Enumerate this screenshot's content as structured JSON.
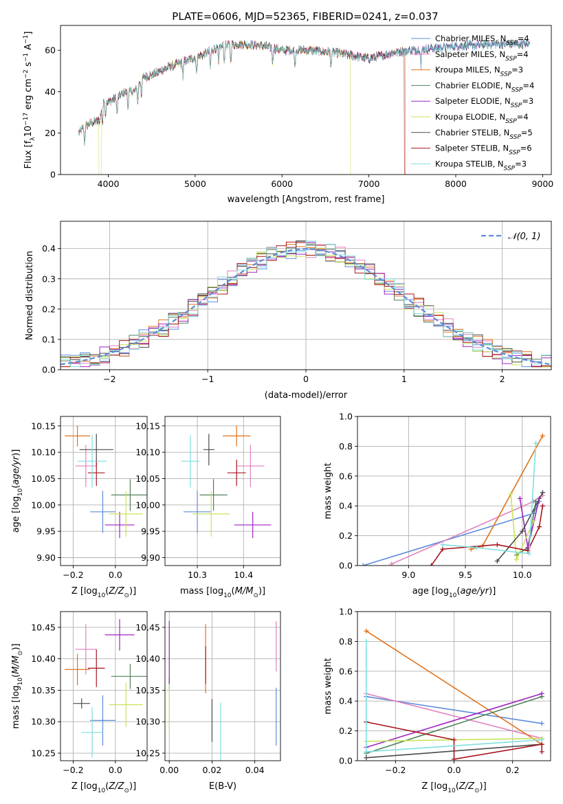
{
  "figure_title": "PLATE=0606, MJD=52365, FIBERID=0241, z=0.037",
  "colors": {
    "blue": "#5b8bd9",
    "pink": "#e27fc0",
    "orange": "#e0731c",
    "dkgreen": "#4f7f5a",
    "purple": "#9f23c0",
    "yellowgreen": "#c8e35a",
    "dkgray": "#4a4a4a",
    "red": "#a8141c",
    "cyan": "#7fdede"
  },
  "chart_data": [
    {
      "id": "spectrum",
      "type": "line",
      "title": "PLATE=0606, MJD=52365, FIBERID=0241, z=0.037",
      "xlabel": "wavelength [Angstrom, rest frame]",
      "ylabel_main": "Flux [f",
      "ylabel_sub1": "λ",
      "ylabel_mid": "10",
      "ylabel_sup1": "−17",
      "ylabel_mid2": " erg cm",
      "ylabel_sup2": "−2",
      "ylabel_mid3": " s",
      "ylabel_sup3": "−1",
      "ylabel_end": " A",
      "ylabel_sup4": "−1",
      "ylabel_close": "]",
      "xlim": [
        3450,
        9100
      ],
      "ylim": [
        0,
        72
      ],
      "xticks": [
        4000,
        5000,
        6000,
        7000,
        8000,
        9000
      ],
      "yticks": [
        0,
        20,
        40,
        60
      ],
      "grid": false,
      "legend_location": "top-right",
      "continuum": {
        "x": [
          3660,
          3700,
          3800,
          3900,
          3950,
          4000,
          4100,
          4200,
          4300,
          4400,
          4500,
          4700,
          4900,
          5100,
          5300,
          5500,
          5800,
          6000,
          6300,
          6600,
          7000,
          7300,
          7500,
          8000,
          8500,
          8850
        ],
        "y": [
          20,
          22,
          25,
          26,
          36,
          35,
          37,
          40,
          40,
          47,
          48,
          52,
          55,
          58,
          62,
          63,
          62,
          60,
          60,
          59,
          56,
          59,
          60,
          62,
          63,
          63
        ]
      },
      "series": [
        {
          "name": "Chabrier MILES",
          "sub": "SSP",
          "nssp": "4",
          "color": "blue"
        },
        {
          "name": "Salpeter MILES",
          "sub": "SSP",
          "nssp": "4",
          "color": "pink"
        },
        {
          "name": "Kroupa MILES",
          "sub": "SSP",
          "nssp": "3",
          "color": "orange",
          "drop_at": 7420
        },
        {
          "name": "Chabrier ELODIE",
          "sub": "SSP",
          "nssp": "4",
          "color": "dkgreen"
        },
        {
          "name": "Salpeter ELODIE",
          "sub": "SSP",
          "nssp": "3",
          "color": "purple"
        },
        {
          "name": "Kroupa ELODIE",
          "sub": "SSP",
          "nssp": "4",
          "color": "yellowgreen",
          "drop_at": 6790,
          "start_drop": 3910
        },
        {
          "name": "Chabrier STELIB",
          "sub": "SSP",
          "nssp": "5",
          "color": "dkgray"
        },
        {
          "name": "Salpeter STELIB",
          "sub": "SSP",
          "nssp": "6",
          "color": "red",
          "drop_at": 7410
        },
        {
          "name": "Kroupa STELIB",
          "sub": "SSP",
          "nssp": "3",
          "color": "cyan"
        }
      ]
    },
    {
      "id": "residuals",
      "type": "histogram",
      "xlabel": "(data-model)/error",
      "ylabel": "Normed distribution",
      "xlim": [
        -2.5,
        2.5
      ],
      "ylim": [
        0,
        0.49
      ],
      "xticks": [
        -2,
        -1,
        0,
        1,
        2
      ],
      "xtick_labels": [
        "−2",
        "−1",
        "0",
        "1",
        "2"
      ],
      "yticks": [
        0.0,
        0.1,
        0.2,
        0.3,
        0.4
      ],
      "ytick_labels": [
        "0.0",
        "0.1",
        "0.2",
        "0.3",
        "0.4"
      ],
      "grid": true,
      "legend_location": "top-right",
      "reference_label": "𝒩(0, 1)",
      "reference_color": "blue",
      "bin_width": 0.1,
      "series_colors": [
        "blue",
        "pink",
        "orange",
        "dkgreen",
        "purple",
        "yellowgreen",
        "dkgray",
        "red",
        "cyan"
      ]
    },
    {
      "id": "age_vs_Z",
      "type": "scatter",
      "xlabel": "Z [log",
      "xlabel_sub": "10",
      "xlabel_end": "(Z/Z",
      "xlabel_sub2": "⊙",
      "xlabel_close": ")]",
      "ylabel": "age  [log",
      "ylabel_sub": "10",
      "ylabel_end": "(age/yr)]",
      "xlim": [
        -0.26,
        0.15
      ],
      "ylim": [
        9.885,
        10.168
      ],
      "xticks": [
        -0.2,
        0.0
      ],
      "xtick_labels": [
        "−0.2",
        "0.0"
      ],
      "yticks": [
        9.9,
        9.95,
        10.0,
        10.05,
        10.1,
        10.15
      ],
      "ytick_labels": [
        "9.90",
        "9.95",
        "10.00",
        "10.05",
        "10.10",
        "10.15"
      ],
      "grid": true,
      "points": [
        {
          "color": "blue",
          "x": -0.06,
          "xerr": 0.06,
          "y": 9.987,
          "yerr": 0.04
        },
        {
          "color": "pink",
          "x": -0.14,
          "xerr": 0.05,
          "y": 10.074,
          "yerr": 0.04
        },
        {
          "color": "orange",
          "x": -0.18,
          "xerr": 0.06,
          "y": 10.131,
          "yerr": 0.02
        },
        {
          "color": "dkgreen",
          "x": 0.07,
          "xerr": 0.09,
          "y": 10.019,
          "yerr": 0.03
        },
        {
          "color": "purple",
          "x": 0.02,
          "xerr": 0.07,
          "y": 9.962,
          "yerr": 0.025
        },
        {
          "color": "yellowgreen",
          "x": 0.05,
          "xerr": 0.08,
          "y": 9.983,
          "yerr": 0.043
        },
        {
          "color": "dkgray",
          "x": -0.09,
          "xerr": 0.08,
          "y": 10.105,
          "yerr": 0.03
        },
        {
          "color": "red",
          "x": -0.09,
          "xerr": 0.04,
          "y": 10.061,
          "yerr": 0.025
        },
        {
          "color": "cyan",
          "x": -0.11,
          "xerr": 0.07,
          "y": 10.083,
          "yerr": 0.05
        }
      ]
    },
    {
      "id": "age_vs_mass",
      "type": "scatter",
      "xlabel": "mass [log",
      "xlabel_sub": "10",
      "xlabel_end": "(M/M",
      "xlabel_sub2": "⊙",
      "xlabel_close": ")]",
      "xlim": [
        10.23,
        10.48
      ],
      "ylim": [
        9.885,
        10.168
      ],
      "xticks": [
        10.3,
        10.4
      ],
      "xtick_labels": [
        "10.3",
        "10.4"
      ],
      "yticks": [
        9.9,
        9.95,
        10.0,
        10.05,
        10.1,
        10.15
      ],
      "ytick_labels": [
        "9.90",
        "9.95",
        "10.00",
        "10.05",
        "10.10",
        "10.15"
      ],
      "grid": true,
      "points": [
        {
          "color": "blue",
          "x": 10.3,
          "xerr": 0.03,
          "y": 9.987,
          "yerr": 0.04
        },
        {
          "color": "pink",
          "x": 10.415,
          "xerr": 0.03,
          "y": 10.074,
          "yerr": 0.04
        },
        {
          "color": "orange",
          "x": 10.385,
          "xerr": 0.03,
          "y": 10.131,
          "yerr": 0.02
        },
        {
          "color": "dkgreen",
          "x": 10.335,
          "xerr": 0.03,
          "y": 10.019,
          "yerr": 0.03
        },
        {
          "color": "purple",
          "x": 10.42,
          "xerr": 0.04,
          "y": 9.962,
          "yerr": 0.025
        },
        {
          "color": "yellowgreen",
          "x": 10.33,
          "xerr": 0.04,
          "y": 9.983,
          "yerr": 0.043
        },
        {
          "color": "dkgray",
          "x": 10.325,
          "xerr": 0.012,
          "y": 10.105,
          "yerr": 0.03
        },
        {
          "color": "red",
          "x": 10.385,
          "xerr": 0.02,
          "y": 10.061,
          "yerr": 0.025
        },
        {
          "color": "cyan",
          "x": 10.285,
          "xerr": 0.02,
          "y": 10.083,
          "yerr": 0.05
        }
      ]
    },
    {
      "id": "weight_vs_age",
      "type": "line",
      "xlabel": "age  [log",
      "xlabel_sub": "10",
      "xlabel_end": "(age/yr)]",
      "ylabel": "mass weight",
      "xlim": [
        8.55,
        10.25
      ],
      "ylim": [
        0.0,
        1.0
      ],
      "xticks": [
        9.0,
        9.5,
        10.0
      ],
      "xtick_labels": [
        "9.0",
        "9.5",
        "10.0"
      ],
      "yticks": [
        0.0,
        0.2,
        0.4,
        0.6,
        0.8,
        1.0
      ],
      "ytick_labels": [
        "0.0",
        "0.2",
        "0.4",
        "0.6",
        "0.8",
        "1.0"
      ],
      "grid": true,
      "series": [
        {
          "color": "blue",
          "x": [
            8.6,
            10.1,
            10.15
          ],
          "y": [
            0.0,
            0.35,
            0.43
          ]
        },
        {
          "color": "pink",
          "x": [
            8.85,
            10.1,
            10.18
          ],
          "y": [
            0.01,
            0.43,
            0.47
          ]
        },
        {
          "color": "orange",
          "x": [
            9.55,
            9.65,
            10.18
          ],
          "y": [
            0.11,
            0.13,
            0.87
          ]
        },
        {
          "color": "dkgreen",
          "x": [
            9.95,
            10.05,
            10.12
          ],
          "y": [
            0.07,
            0.12,
            0.43
          ]
        },
        {
          "color": "purple",
          "x": [
            9.98,
            10.05,
            10.15
          ],
          "y": [
            0.45,
            0.12,
            0.45
          ]
        },
        {
          "color": "yellowgreen",
          "x": [
            9.9,
            9.95,
            10.1
          ],
          "y": [
            0.48,
            0.04,
            0.3
          ]
        },
        {
          "color": "dkgray",
          "x": [
            9.78,
            10.0,
            10.18
          ],
          "y": [
            0.03,
            0.23,
            0.49
          ]
        },
        {
          "color": "red",
          "x": [
            9.2,
            9.3,
            9.78,
            10.05,
            10.15,
            10.18
          ],
          "y": [
            0.0,
            0.11,
            0.14,
            0.1,
            0.26,
            0.4
          ]
        },
        {
          "color": "cyan",
          "x": [
            9.3,
            9.6,
            10.06,
            10.12
          ],
          "y": [
            0.14,
            0.12,
            0.08,
            0.82
          ]
        }
      ]
    },
    {
      "id": "mass_vs_Z",
      "type": "scatter",
      "xlabel": "Z [log",
      "xlabel_sub": "10",
      "xlabel_end": "(Z/Z",
      "xlabel_sub2": "⊙",
      "xlabel_close": ")]",
      "ylabel": "mass [log",
      "ylabel_sub": "10",
      "ylabel_end": "(M/M",
      "ylabel_sub2": "⊙",
      "ylabel_close": ")]",
      "xlim": [
        -0.26,
        0.15
      ],
      "ylim": [
        10.238,
        10.475
      ],
      "xticks": [
        -0.2,
        0.0
      ],
      "xtick_labels": [
        "−0.2",
        "0.0"
      ],
      "yticks": [
        10.25,
        10.3,
        10.35,
        10.4,
        10.45
      ],
      "ytick_labels": [
        "10.25",
        "10.30",
        "10.35",
        "10.40",
        "10.45"
      ],
      "grid": true,
      "points": [
        {
          "color": "blue",
          "x": -0.06,
          "xerr": 0.06,
          "y": 10.302,
          "yerr": 0.04
        },
        {
          "color": "pink",
          "x": -0.14,
          "xerr": 0.05,
          "y": 10.415,
          "yerr": 0.04
        },
        {
          "color": "orange",
          "x": -0.18,
          "xerr": 0.06,
          "y": 10.383,
          "yerr": 0.025
        },
        {
          "color": "dkgreen",
          "x": 0.07,
          "xerr": 0.09,
          "y": 10.372,
          "yerr": 0.02
        },
        {
          "color": "purple",
          "x": 0.02,
          "xerr": 0.07,
          "y": 10.438,
          "yerr": 0.025
        },
        {
          "color": "yellowgreen",
          "x": 0.05,
          "xerr": 0.08,
          "y": 10.327,
          "yerr": 0.035
        },
        {
          "color": "dkgray",
          "x": -0.16,
          "xerr": 0.04,
          "y": 10.329,
          "yerr": 0.008
        },
        {
          "color": "red",
          "x": -0.09,
          "xerr": 0.04,
          "y": 10.385,
          "yerr": 0.03
        },
        {
          "color": "cyan",
          "x": -0.11,
          "xerr": 0.05,
          "y": 10.283,
          "yerr": 0.04
        }
      ]
    },
    {
      "id": "mass_vs_ebv",
      "type": "scatter",
      "xlabel": "E(B-V)",
      "xlim": [
        -0.002,
        0.052
      ],
      "ylim": [
        10.238,
        10.475
      ],
      "xticks": [
        0.0,
        0.02,
        0.04
      ],
      "xtick_labels": [
        "0.00",
        "0.02",
        "0.04"
      ],
      "yticks": [
        10.25,
        10.3,
        10.35,
        10.4,
        10.45
      ],
      "ytick_labels": [
        "10.25",
        "10.30",
        "10.35",
        "10.40",
        "10.45"
      ],
      "grid": true,
      "points": [
        {
          "color": "blue",
          "x": 0.05,
          "xerr": 0.0,
          "y": 10.308,
          "yerr": 0.046
        },
        {
          "color": "pink",
          "x": 0.05,
          "xerr": 0.0,
          "y": 10.42,
          "yerr": 0.04
        },
        {
          "color": "orange",
          "x": 0.017,
          "xerr": 0.0,
          "y": 10.4,
          "yerr": 0.055
        },
        {
          "color": "dkgreen",
          "x": 0.0,
          "xerr": 0.0,
          "y": 10.36,
          "yerr": 0.01
        },
        {
          "color": "purple",
          "x": 0.0,
          "xerr": 0.0,
          "y": 10.41,
          "yerr": 0.05
        },
        {
          "color": "yellowgreen",
          "x": 0.0,
          "xerr": 0.0,
          "y": 10.32,
          "yerr": 0.04
        },
        {
          "color": "dkgray",
          "x": 0.02,
          "xerr": 0.0,
          "y": 10.302,
          "yerr": 0.034
        },
        {
          "color": "red",
          "x": 0.017,
          "xerr": 0.0,
          "y": 10.39,
          "yerr": 0.03
        },
        {
          "color": "cyan",
          "x": 0.024,
          "xerr": 0.0,
          "y": 10.28,
          "yerr": 0.05
        }
      ]
    },
    {
      "id": "weight_vs_Z",
      "type": "line",
      "xlabel": "Z [log",
      "xlabel_sub": "10",
      "xlabel_end": "(Z/Z",
      "xlabel_sub2": "⊙",
      "xlabel_close": ")]",
      "ylabel": "mass weight",
      "xlim": [
        -0.33,
        0.33
      ],
      "ylim": [
        0.0,
        1.0
      ],
      "xticks": [
        -0.2,
        0.0,
        0.2
      ],
      "xtick_labels": [
        "−0.2",
        "0.0",
        "0.2"
      ],
      "yticks": [
        0.0,
        0.2,
        0.4,
        0.6,
        0.8,
        1.0
      ],
      "ytick_labels": [
        "0.0",
        "0.2",
        "0.4",
        "0.6",
        "0.8",
        "1.0"
      ],
      "grid": true,
      "series": [
        {
          "color": "blue",
          "x": [
            -0.3,
            0.3
          ],
          "y": [
            0.43,
            0.25
          ]
        },
        {
          "color": "pink",
          "x": [
            -0.3,
            0.3
          ],
          "y": [
            0.45,
            0.15
          ]
        },
        {
          "color": "orange",
          "x": [
            -0.3,
            0.3
          ],
          "y": [
            0.87,
            0.11
          ]
        },
        {
          "color": "dkgreen",
          "x": [
            -0.3,
            0.3
          ],
          "y": [
            0.05,
            0.43
          ]
        },
        {
          "color": "purple",
          "x": [
            -0.3,
            0.3
          ],
          "y": [
            0.09,
            0.45
          ]
        },
        {
          "color": "yellowgreen",
          "x": [
            -0.3,
            0.3
          ],
          "y": [
            0.13,
            0.15
          ]
        },
        {
          "color": "dkgray",
          "x": [
            -0.3,
            0.3
          ],
          "y": [
            0.02,
            0.11
          ]
        },
        {
          "color": "red",
          "x": [
            -0.3,
            0.0,
            0.0,
            0.3,
            0.3
          ],
          "y": [
            0.26,
            0.14,
            0.01,
            0.11,
            0.06
          ]
        },
        {
          "color": "cyan",
          "x": [
            -0.3,
            -0.3,
            0.3
          ],
          "y": [
            0.8,
            0.06,
            0.14
          ]
        }
      ]
    }
  ]
}
